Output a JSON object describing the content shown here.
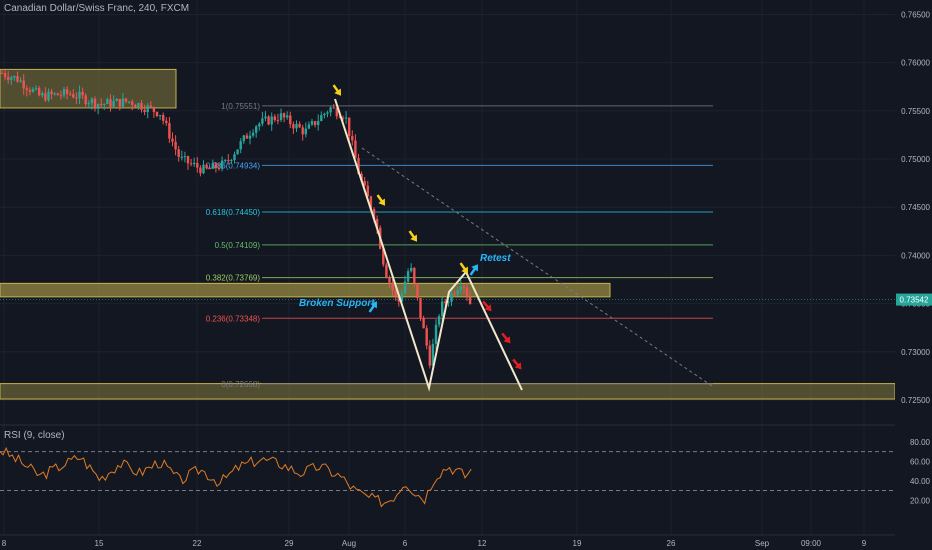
{
  "header": {
    "title": "Canadian Dollar/Swiss Franc, 240, FXCM"
  },
  "rsi": {
    "label": "RSI (9, close)",
    "levels": [
      70,
      30
    ],
    "ticks": [
      "80.00",
      "60.00",
      "40.00",
      "20.00"
    ]
  },
  "annotations": {
    "broken_support": "Broken Support",
    "retest": "Retest"
  },
  "colors": {
    "bg": "#131722",
    "up": "#26a69a",
    "down": "#ef5350",
    "zone": "#c7b34e",
    "pattern": "#f3e7c9",
    "arrow_red": "#e02020",
    "arrow_yellow": "#f7d117",
    "arrow_cyan": "#29b6f6",
    "rsi_line": "#e07c24",
    "price_tag": "#26a69a"
  },
  "chart_data": {
    "type": "candlestick",
    "symbol": "Canadian Dollar/Swiss Franc",
    "timeframe": "240",
    "source": "FXCM",
    "x_tick_labels": [
      "8",
      "15",
      "22",
      "29",
      "Aug",
      "6",
      "12",
      "19",
      "26",
      "Sep",
      "09:00",
      "9"
    ],
    "y_tick_labels": [
      "0.76500",
      "0.76000",
      "0.75500",
      "0.75000",
      "0.74500",
      "0.74000",
      "0.73500",
      "0.73000",
      "0.72500"
    ],
    "ylim": [
      0.7237,
      0.7665
    ],
    "current_price": {
      "label": "0.73542",
      "value": 0.73542
    },
    "fibonacci": [
      {
        "label": "1(0.75551)",
        "value": 0.75551,
        "color": "#787b86"
      },
      {
        "label": "0.786(0.74934)",
        "value": 0.74934,
        "color": "#42a5f5"
      },
      {
        "label": "0.618(0.74450)",
        "value": 0.7445,
        "color": "#26c6da"
      },
      {
        "label": "0.5(0.74109)",
        "value": 0.74109,
        "color": "#66bb6a"
      },
      {
        "label": "0.382(0.73769)",
        "value": 0.73769,
        "color": "#9ccc65"
      },
      {
        "label": "0.236(0.73348)",
        "value": 0.73348,
        "color": "#ef5350"
      },
      {
        "label": "0(0.72668)",
        "value": 0.72668,
        "color": "#787b86"
      }
    ],
    "zones": [
      {
        "from": 0.7593,
        "to": 0.7553,
        "color": "#c7b34e"
      },
      {
        "from": 0.7371,
        "to": 0.7357,
        "color": "#c7b34e"
      },
      {
        "from": 0.7267,
        "to": 0.7251,
        "color": "#c7b34e"
      }
    ],
    "rsi": {
      "period": 9,
      "levels": [
        70,
        30
      ]
    }
  }
}
